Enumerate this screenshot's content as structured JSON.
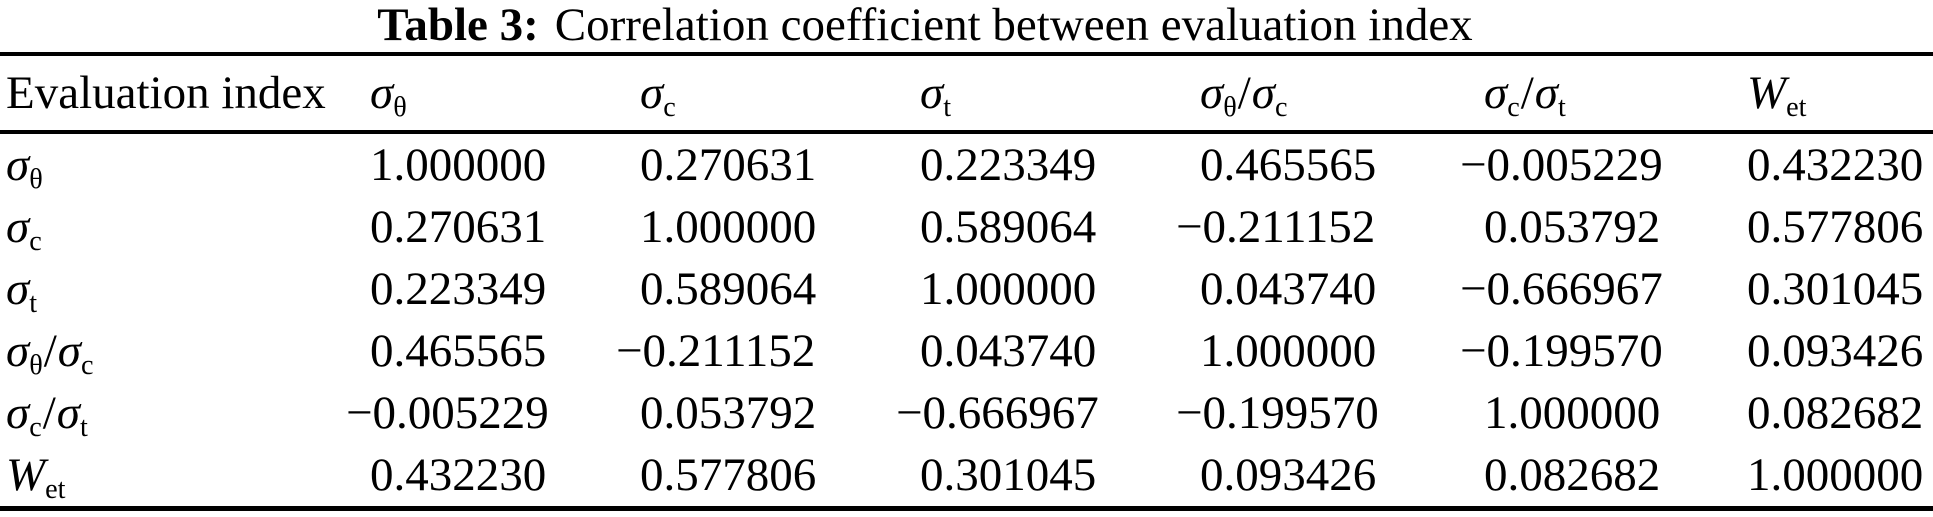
{
  "title": {
    "label": "Table 3:",
    "text": "Correlation coefficient between evaluation index"
  },
  "table": {
    "header": [
      {
        "label": "Evaluation index"
      },
      {
        "base": "σ",
        "sub": "θ"
      },
      {
        "base": "σ",
        "sub": "c"
      },
      {
        "base": "σ",
        "sub": "t"
      },
      {
        "base": "σ",
        "sub": "θ",
        "slash": "/",
        "base2": "σ",
        "sub2": "c"
      },
      {
        "base": "σ",
        "sub": "c",
        "slash": "/",
        "base2": "σ",
        "sub2": "t"
      },
      {
        "base": "W",
        "sub": "et"
      }
    ],
    "rows": [
      {
        "label": {
          "base": "σ",
          "sub": "θ"
        },
        "values": [
          "1.000000",
          "0.270631",
          "0.223349",
          "0.465565",
          "−0.005229",
          "0.432230"
        ]
      },
      {
        "label": {
          "base": "σ",
          "sub": "c"
        },
        "values": [
          "0.270631",
          "1.000000",
          "0.589064",
          "−0.211152",
          "0.053792",
          "0.577806"
        ]
      },
      {
        "label": {
          "base": "σ",
          "sub": "t"
        },
        "values": [
          "0.223349",
          "0.589064",
          "1.000000",
          "0.043740",
          "−0.666967",
          "0.301045"
        ]
      },
      {
        "label": {
          "base": "σ",
          "sub": "θ",
          "slash": "/",
          "base2": "σ",
          "sub2": "c"
        },
        "values": [
          "0.465565",
          "−0.211152",
          "0.043740",
          "1.000000",
          "−0.199570",
          "0.093426"
        ]
      },
      {
        "label": {
          "base": "σ",
          "sub": "c",
          "slash": "/",
          "base2": "σ",
          "sub2": "t"
        },
        "values": [
          "−0.005229",
          "0.053792",
          "−0.666967",
          "−0.199570",
          "1.000000",
          "0.082682"
        ]
      },
      {
        "label": {
          "base": "W",
          "sub": "et"
        },
        "values": [
          "0.432230",
          "0.577806",
          "0.301045",
          "0.093426",
          "0.082682",
          "1.000000"
        ]
      }
    ]
  }
}
